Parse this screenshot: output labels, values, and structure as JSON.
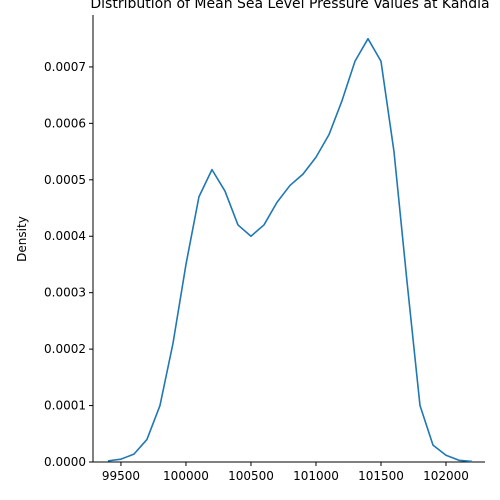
{
  "chart_data": {
    "type": "line",
    "title": "Distribution of Mean Sea Level Pressure Values at Kandla",
    "y_label": "Density",
    "x": [
      99400,
      99500,
      99600,
      99700,
      99800,
      99900,
      100000,
      100100,
      100200,
      100300,
      100400,
      100500,
      100600,
      100700,
      100800,
      100900,
      101000,
      101100,
      101200,
      101300,
      101400,
      101500,
      101600,
      101700,
      101800,
      101900,
      102000,
      102100,
      102200
    ],
    "series": [
      {
        "name": "Density",
        "color": "#1f77b4",
        "values": [
          2e-06,
          5e-06,
          1.4e-05,
          4e-05,
          0.0001,
          0.00021,
          0.00035,
          0.00047,
          0.000518,
          0.00048,
          0.00042,
          0.0004,
          0.00042,
          0.00046,
          0.00049,
          0.00051,
          0.00054,
          0.00058,
          0.00064,
          0.00071,
          0.00075,
          0.00071,
          0.00055,
          0.00032,
          0.0001,
          3e-05,
          1.2e-05,
          3e-06,
          1e-06
        ]
      }
    ],
    "xlim": [
      99285,
      102300
    ],
    "xticks": [
      99500,
      100000,
      100500,
      101000,
      101500,
      102000
    ],
    "ylim": [
      0,
      0.000792
    ],
    "yticks": [
      {
        "value": 0,
        "label": "0.0000"
      },
      {
        "value": 0.0001,
        "label": "0.0001"
      },
      {
        "value": 0.0002,
        "label": "0.0002"
      },
      {
        "value": 0.0003,
        "label": "0.0003"
      },
      {
        "value": 0.0004,
        "label": "0.0004"
      },
      {
        "value": 0.0005,
        "label": "0.0005"
      },
      {
        "value": 0.0006,
        "label": "0.0006"
      },
      {
        "value": 0.0007,
        "label": "0.0007"
      }
    ]
  }
}
